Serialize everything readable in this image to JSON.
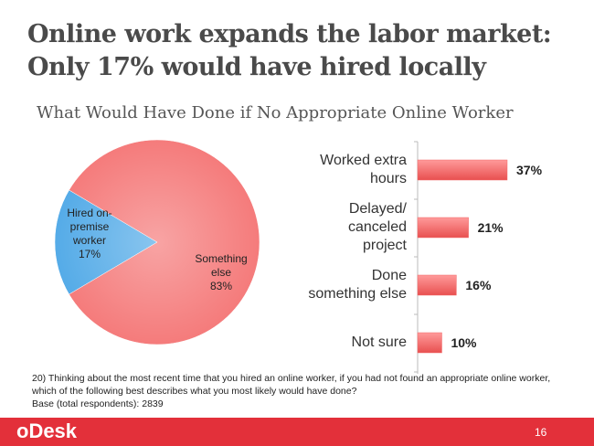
{
  "title_lines": [
    "Online work expands the labor market:",
    "Only 17% would have hired locally"
  ],
  "subtitle": "What Would Have Done if No Appropriate Online Worker",
  "chart_data": [
    {
      "type": "pie",
      "categories": [
        "Hired on-\npremise\nworker",
        "Something\nelse"
      ],
      "values": [
        17,
        83
      ],
      "value_labels": [
        "17%",
        "83%"
      ],
      "colors": [
        "#4aa6e6",
        "#f47373"
      ]
    },
    {
      "type": "hbar",
      "categories": [
        "Worked extra\nhours",
        "Delayed/\ncanceled\nproject",
        "Done\nsomething else",
        "Not sure"
      ],
      "values": [
        37,
        21,
        16,
        10
      ],
      "value_labels": [
        "37%",
        "21%",
        "16%",
        "10%"
      ],
      "color": "#f26b6b"
    }
  ],
  "footnote": [
    "20) Thinking about the most recent time that you hired an online worker, if you had not found an appropriate online worker,",
    "which of the following best describes what you most likely would have done?",
    "Base (total respondents): 2839"
  ],
  "footer": {
    "logo": "oDesk",
    "page": 16
  }
}
